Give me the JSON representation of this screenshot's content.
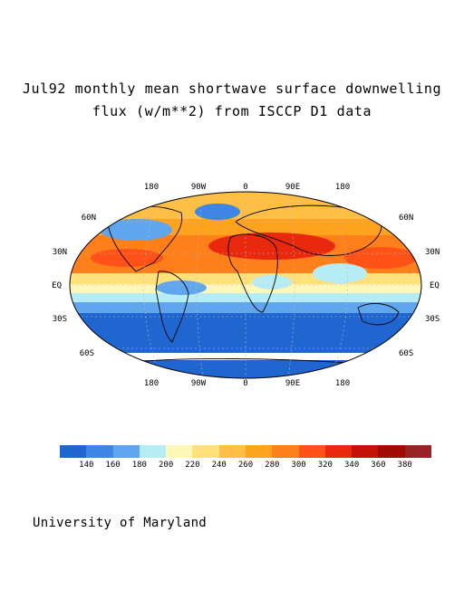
{
  "title": {
    "line1": "Jul92 monthly mean shortwave surface downwelling",
    "line2": "flux (w/m**2) from ISCCP D1 data"
  },
  "map_labels": {
    "lon_top": [
      "180",
      "90W",
      "0",
      "90E",
      "180"
    ],
    "lon_bottom": [
      "180",
      "90W",
      "0",
      "90E",
      "180"
    ],
    "lat_left": [
      "60N",
      "30N",
      "EQ",
      "30S",
      "60S"
    ],
    "lat_right": [
      "60N",
      "30N",
      "EQ",
      "30S",
      "60S"
    ]
  },
  "legend": {
    "colors": [
      "#1f66d1",
      "#3d86e6",
      "#5fa6ee",
      "#b6ecf6",
      "#fff7b8",
      "#ffe07a",
      "#ffbf45",
      "#ffa21e",
      "#ff7f1a",
      "#ff5218",
      "#e8290e",
      "#c41208",
      "#a30a06",
      "#992226"
    ],
    "ticks": [
      "140",
      "160",
      "180",
      "200",
      "220",
      "240",
      "260",
      "280",
      "300",
      "320",
      "340",
      "360",
      "380"
    ]
  },
  "credit": "University of Maryland"
}
